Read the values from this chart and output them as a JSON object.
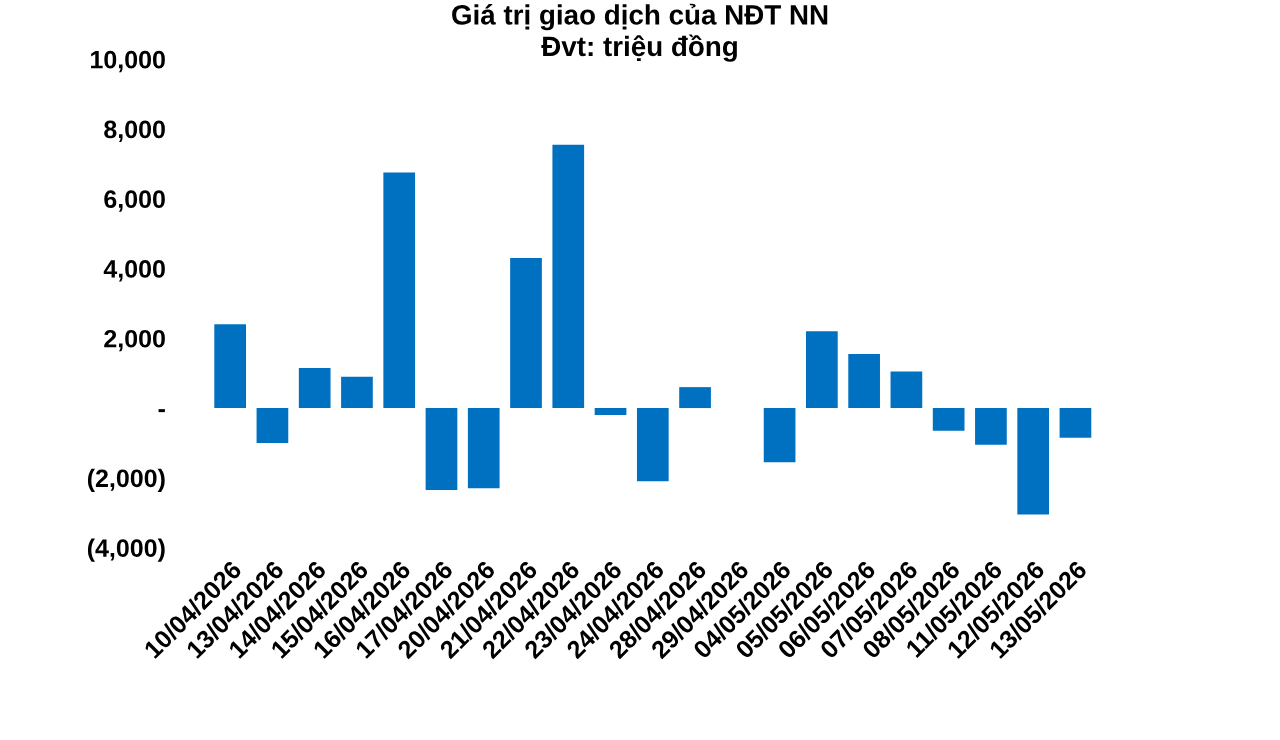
{
  "chart_data": {
    "type": "bar",
    "title": "Giá trị giao dịch của NĐT NN\nĐvt: triệu đồng",
    "categories": [
      "10/04/2026",
      "13/04/2026",
      "14/04/2026",
      "15/04/2026",
      "16/04/2026",
      "17/04/2026",
      "20/04/2026",
      "21/04/2026",
      "22/04/2026",
      "23/04/2026",
      "24/04/2026",
      "28/04/2026",
      "29/04/2026",
      "04/05/2026",
      "05/05/2026",
      "06/05/2026",
      "07/05/2026",
      "08/05/2026",
      "11/05/2026",
      "12/05/2026",
      "13/05/2026"
    ],
    "values": [
      2400,
      -1000,
      1150,
      900,
      6750,
      -2350,
      -2300,
      4300,
      7550,
      -200,
      -2100,
      600,
      0,
      -1550,
      2200,
      1550,
      1050,
      -650,
      -1050,
      -3050,
      -850
    ],
    "color": "#0070c0",
    "ylim": [
      -4000,
      10000
    ],
    "yticks": [
      {
        "value": -4000,
        "label": "(4,000)"
      },
      {
        "value": -2000,
        "label": "(2,000)"
      },
      {
        "value": 0,
        "label": "-"
      },
      {
        "value": 2000,
        "label": "2,000"
      },
      {
        "value": 4000,
        "label": "4,000"
      },
      {
        "value": 6000,
        "label": "6,000"
      },
      {
        "value": 8000,
        "label": "8,000"
      },
      {
        "value": 10000,
        "label": "10,000"
      }
    ],
    "grid": false
  }
}
